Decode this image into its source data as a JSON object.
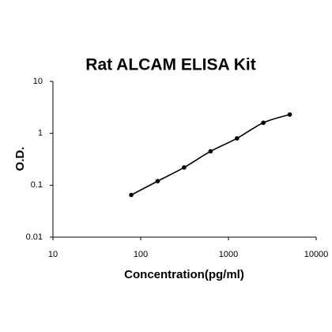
{
  "chart_data": {
    "type": "scatter",
    "title": "Rat ALCAM ELISA Kit",
    "x_label": "Concentration(pg/ml)",
    "y_label": "O.D.",
    "x": [
      78.125,
      156.25,
      312.5,
      625,
      1250,
      2500,
      5000
    ],
    "series": [
      {
        "color": "#000000",
        "values": [
          0.065,
          0.12,
          0.22,
          0.45,
          0.8,
          1.6,
          2.3
        ]
      }
    ],
    "xlim": [
      10,
      10000
    ],
    "xticks": [
      10,
      100,
      1000,
      10000
    ],
    "ylim": [
      0.01,
      10
    ],
    "yticks": [
      0.01,
      0.1,
      1,
      10
    ],
    "x_log": true,
    "y_log": true,
    "fit_line": true
  }
}
